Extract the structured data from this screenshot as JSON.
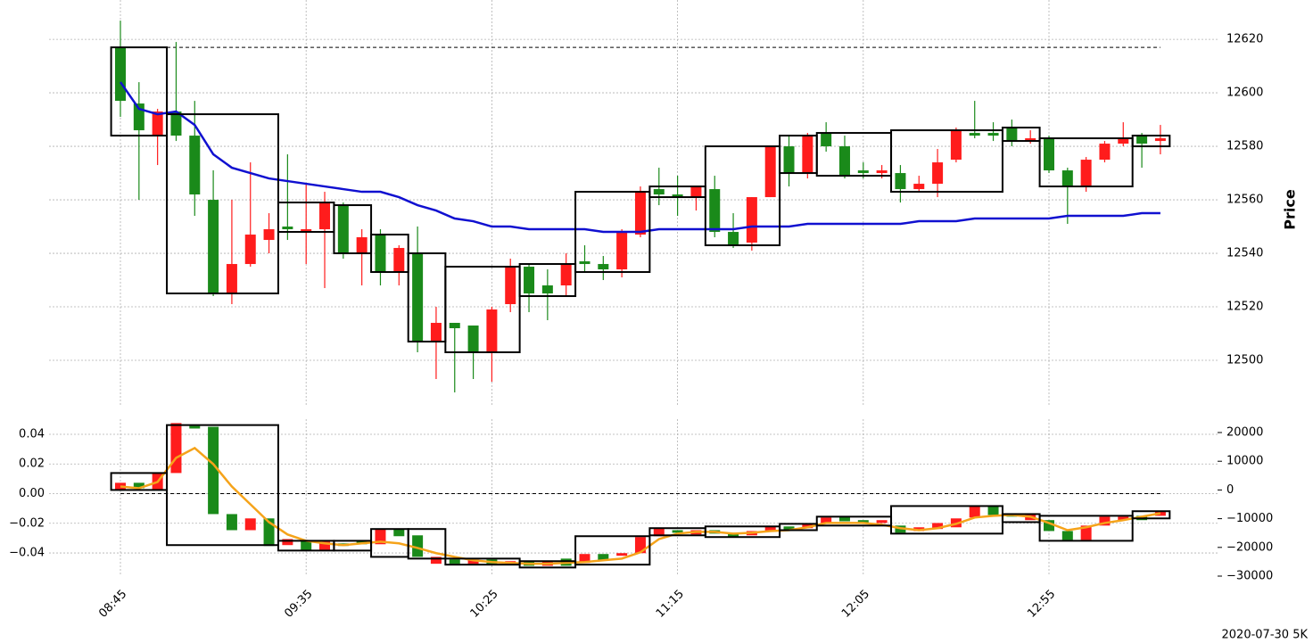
{
  "chart_data": [
    {
      "type": "candlestick",
      "y_label": "Price",
      "yaxis": "right",
      "grid": true,
      "ylim": [
        12483,
        12634.7
      ],
      "yticks": [
        12500,
        12520,
        12540,
        12560,
        12580,
        12600,
        12620
      ],
      "hline": 12617,
      "candles": {
        "up_color": "#1a8a1a",
        "down_color": "#ff1c1c",
        "open": [
          12597,
          12586,
          12593,
          12584,
          12562,
          12525,
          12536,
          12547,
          12549,
          12549,
          12549,
          12559,
          12540,
          12546,
          12533,
          12542,
          12507,
          12514,
          12512,
          12503,
          12519,
          12535,
          12525,
          12525,
          12536,
          12536,
          12534,
          12548,
          12563,
          12562,
          12561,
          12565,
          12548,
          12543,
          12561,
          12580,
          12570,
          12584,
          12580,
          12569,
          12570,
          12571,
          12564,
          12566,
          12574,
          12586,
          12584,
          12584,
          12582,
          12583,
          12571,
          12565,
          12575,
          12581,
          12583,
          12581,
          12583
        ],
        "high": [
          12627,
          12604,
          12594,
          12619,
          12597,
          12571,
          12560,
          12574,
          12555,
          12577,
          12566,
          12563,
          12559,
          12549,
          12549,
          12543,
          12550,
          12520,
          12514,
          12513,
          12520,
          12538,
          12536,
          12534,
          12540,
          12543,
          12539,
          12549,
          12565,
          12572,
          12569,
          12565,
          12569,
          12555,
          12561,
          12580,
          12584,
          12585,
          12589,
          12584,
          12574,
          12573,
          12573,
          12569,
          12579,
          12587,
          12597,
          12589,
          12590,
          12586,
          12584,
          12572,
          12576,
          12582,
          12589,
          12585,
          12588
        ],
        "low": [
          12591,
          12560,
          12573,
          12582,
          12554,
          12524,
          12521,
          12535,
          12540,
          12545,
          12536,
          12527,
          12538,
          12528,
          12528,
          12528,
          12503,
          12493,
          12488,
          12493,
          12492,
          12518,
          12518,
          12515,
          12524,
          12533,
          12530,
          12531,
          12546,
          12558,
          12554,
          12556,
          12546,
          12542,
          12541,
          12561,
          12565,
          12568,
          12578,
          12568,
          12568,
          12568,
          12559,
          12563,
          12561,
          12574,
          12583,
          12582,
          12580,
          12581,
          12570,
          12551,
          12563,
          12574,
          12580,
          12572,
          12577
        ],
        "close": [
          12617,
          12596,
          12584,
          12593,
          12584,
          12560,
          12525,
          12536,
          12545,
          12550,
          12548,
          12549,
          12558,
          12540,
          12547,
          12533,
          12540,
          12507,
          12514,
          12513,
          12503,
          12521,
          12535,
          12528,
          12528,
          12537,
          12536,
          12534,
          12547,
          12564,
          12562,
          12561,
          12564,
          12548,
          12544,
          12561,
          12580,
          12570,
          12585,
          12580,
          12571,
          12570,
          12570,
          12564,
          12566,
          12575,
          12585,
          12585,
          12587,
          12582,
          12583,
          12571,
          12565,
          12575,
          12581,
          12584,
          12582
        ]
      },
      "ma": {
        "color": "#1010d0",
        "values": [
          12604,
          12594,
          12592,
          12593,
          12588,
          12577,
          12572,
          12570,
          12568,
          12567,
          12566,
          12565,
          12564,
          12563,
          12563,
          12561,
          12558,
          12556,
          12553,
          12552,
          12550,
          12550,
          12549,
          12549,
          12549,
          12549,
          12548,
          12548,
          12548,
          12549,
          12549,
          12549,
          12549,
          12549,
          12550,
          12550,
          12550,
          12551,
          12551,
          12551,
          12551,
          12551,
          12551,
          12552,
          12552,
          12552,
          12553,
          12553,
          12553,
          12553,
          12553,
          12554,
          12554,
          12554,
          12554,
          12555,
          12555
        ]
      },
      "boxes": [
        {
          "start": 0,
          "end": 2,
          "high": 12617,
          "low": 12584
        },
        {
          "start": 3,
          "end": 8,
          "high": 12592,
          "low": 12525
        },
        {
          "start": 9,
          "end": 11,
          "high": 12559,
          "low": 12548
        },
        {
          "start": 12,
          "end": 13,
          "high": 12558,
          "low": 12540
        },
        {
          "start": 14,
          "end": 15,
          "high": 12547,
          "low": 12533
        },
        {
          "start": 16,
          "end": 17,
          "high": 12540,
          "low": 12507
        },
        {
          "start": 18,
          "end": 21,
          "high": 12535,
          "low": 12503
        },
        {
          "start": 22,
          "end": 24,
          "high": 12536,
          "low": 12524
        },
        {
          "start": 25,
          "end": 28,
          "high": 12563,
          "low": 12533
        },
        {
          "start": 29,
          "end": 31,
          "high": 12565,
          "low": 12561
        },
        {
          "start": 32,
          "end": 35,
          "high": 12580,
          "low": 12543
        },
        {
          "start": 36,
          "end": 37,
          "high": 12584,
          "low": 12570
        },
        {
          "start": 38,
          "end": 41,
          "high": 12585,
          "low": 12569
        },
        {
          "start": 42,
          "end": 47,
          "high": 12586,
          "low": 12563
        },
        {
          "start": 48,
          "end": 49,
          "high": 12587,
          "low": 12582
        },
        {
          "start": 50,
          "end": 54,
          "high": 12583,
          "low": 12565
        },
        {
          "start": 55,
          "end": 56,
          "high": 12584,
          "low": 12580
        }
      ]
    },
    {
      "type": "candlestick",
      "yaxis": "left",
      "grid": true,
      "categories": [
        "08:45",
        null,
        null,
        null,
        null,
        null,
        null,
        null,
        null,
        null,
        "09:35",
        null,
        null,
        null,
        null,
        null,
        null,
        null,
        null,
        null,
        "10:25",
        null,
        null,
        null,
        null,
        null,
        null,
        null,
        null,
        null,
        "11:15",
        null,
        null,
        null,
        null,
        null,
        null,
        null,
        null,
        null,
        "12:05",
        null,
        null,
        null,
        null,
        null,
        null,
        null,
        null,
        null,
        "12:55",
        null,
        null,
        null,
        null,
        null,
        null
      ],
      "ylim": [
        -0.0556,
        0.0502
      ],
      "yticks": [
        0.04,
        0.02,
        {
          "value": 0,
          "label": "0.00"
        },
        {
          "value": -0.02,
          "label": "−0.02"
        },
        {
          "value": -0.04,
          "label": "−0.04"
        }
      ],
      "y2lim": [
        -30000,
        24660
      ],
      "y2ticks": [
        20000,
        10000,
        0,
        {
          "value": -10000,
          "label": "−10000"
        },
        {
          "value": -20000,
          "label": "−20000"
        },
        {
          "value": -30000,
          "label": "−30000"
        }
      ],
      "hline": 0,
      "footnote": "2020-07-30 5K",
      "candles": {
        "axis": "y2",
        "up_color": "#1a8a1a",
        "down_color": "#ff1c1c",
        "open": [
          2500,
          600,
          5900,
          23300,
          21400,
          -8400,
          -14000,
          -9900,
          -19500,
          -17100,
          -21100,
          -18000,
          -19500,
          -18900,
          -13600,
          -16100,
          -23300,
          -23300,
          -25700,
          -24200,
          -25700,
          -24800,
          -26400,
          -24800,
          -26400,
          -22300,
          -24500,
          -22000,
          -16400,
          -13300,
          -14900,
          -14000,
          -15200,
          -16400,
          -14300,
          -12700,
          -14000,
          -11800,
          -9600,
          -10900,
          -11800,
          -10500,
          -14900,
          -13000,
          -11500,
          -9900,
          -5600,
          -8700,
          -9300,
          -8100,
          -14300,
          -17400,
          -12400,
          -9300,
          -9300,
          -10500,
          -7400
        ],
        "close": [
          0,
          2500,
          0,
          5900,
          22300,
          22000,
          -8400,
          -14000,
          -9900,
          -19200,
          -17700,
          -21100,
          -18600,
          -17700,
          -18900,
          -13600,
          -15800,
          -25700,
          -24200,
          -25700,
          -24200,
          -26000,
          -24800,
          -26400,
          -23900,
          -25400,
          -22300,
          -22900,
          -22000,
          -16100,
          -14000,
          -15500,
          -14000,
          -14900,
          -15800,
          -14300,
          -12700,
          -13300,
          -11500,
          -9300,
          -10500,
          -11500,
          -12400,
          -14300,
          -13600,
          -13000,
          -9600,
          -5600,
          -8100,
          -10500,
          -10500,
          -14300,
          -17400,
          -12400,
          -10500,
          -9000,
          -9000
        ]
      },
      "ma": {
        "axis": "y2",
        "color": "#f5a31a",
        "values": [
          1200,
          600,
          2800,
          11200,
          14600,
          9000,
          1200,
          -5000,
          -11200,
          -15500,
          -17700,
          -18600,
          -19200,
          -18600,
          -18000,
          -18600,
          -20200,
          -22000,
          -23300,
          -24500,
          -25100,
          -25400,
          -25700,
          -25700,
          -25400,
          -25100,
          -24500,
          -23900,
          -21700,
          -17100,
          -15200,
          -14600,
          -14600,
          -15200,
          -14900,
          -14300,
          -14000,
          -13000,
          -11500,
          -11500,
          -11500,
          -12100,
          -13300,
          -14000,
          -13300,
          -11800,
          -9600,
          -9000,
          -8700,
          -9300,
          -11500,
          -14000,
          -13000,
          -11500,
          -10500,
          -9300,
          -8100
        ]
      },
      "boxes": {
        "axis": "y2",
        "items": [
          {
            "start": 0,
            "end": 2,
            "high": 5900,
            "low": 0
          },
          {
            "start": 3,
            "end": 8,
            "high": 22600,
            "low": -19200
          },
          {
            "start": 9,
            "end": 11,
            "high": -17700,
            "low": -21100
          },
          {
            "start": 12,
            "end": 13,
            "high": -17700,
            "low": -21100
          },
          {
            "start": 14,
            "end": 15,
            "high": -13600,
            "low": -23300
          },
          {
            "start": 16,
            "end": 17,
            "high": -13600,
            "low": -23900
          },
          {
            "start": 18,
            "end": 21,
            "high": -23900,
            "low": -26000
          },
          {
            "start": 22,
            "end": 24,
            "high": -24800,
            "low": -27000
          },
          {
            "start": 25,
            "end": 28,
            "high": -16100,
            "low": -26000
          },
          {
            "start": 29,
            "end": 31,
            "high": -13300,
            "low": -15800
          },
          {
            "start": 32,
            "end": 35,
            "high": -12700,
            "low": -16400
          },
          {
            "start": 36,
            "end": 37,
            "high": -11800,
            "low": -14000
          },
          {
            "start": 38,
            "end": 41,
            "high": -9300,
            "low": -12400
          },
          {
            "start": 42,
            "end": 47,
            "high": -5600,
            "low": -15200
          },
          {
            "start": 48,
            "end": 49,
            "high": -8400,
            "low": -11200
          },
          {
            "start": 50,
            "end": 54,
            "high": -9000,
            "low": -17700
          },
          {
            "start": 55,
            "end": 56,
            "high": -7400,
            "low": -9900
          }
        ]
      }
    }
  ]
}
